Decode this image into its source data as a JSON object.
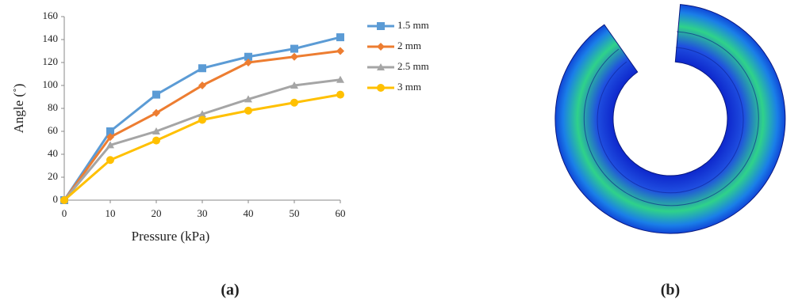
{
  "chart_data": {
    "type": "line",
    "x": [
      0,
      10,
      20,
      30,
      40,
      50,
      60
    ],
    "series": [
      {
        "name": "1.5 mm",
        "color": "#5b9bd5",
        "marker": "square",
        "values": [
          0,
          60,
          92,
          115,
          125,
          132,
          142
        ]
      },
      {
        "name": "2 mm",
        "color": "#ed7d31",
        "marker": "diamond",
        "values": [
          0,
          55,
          76,
          100,
          120,
          125,
          130
        ]
      },
      {
        "name": "2.5 mm",
        "color": "#a5a5a5",
        "marker": "triangle",
        "values": [
          0,
          48,
          60,
          75,
          88,
          100,
          105
        ]
      },
      {
        "name": "3 mm",
        "color": "#ffc000",
        "marker": "circle",
        "values": [
          0,
          35,
          52,
          70,
          78,
          85,
          92
        ]
      }
    ],
    "xlabel": "Pressure (kPa)",
    "ylabel": "Angle (˚)",
    "xlim": [
      0,
      60
    ],
    "xticks": [
      0,
      10,
      20,
      30,
      40,
      50,
      60
    ],
    "ylim": [
      0,
      160
    ],
    "yticks": [
      0,
      20,
      40,
      60,
      80,
      100,
      120,
      140,
      160
    ],
    "legend": "right"
  },
  "panel_labels": [
    "(a)",
    "(b)"
  ]
}
